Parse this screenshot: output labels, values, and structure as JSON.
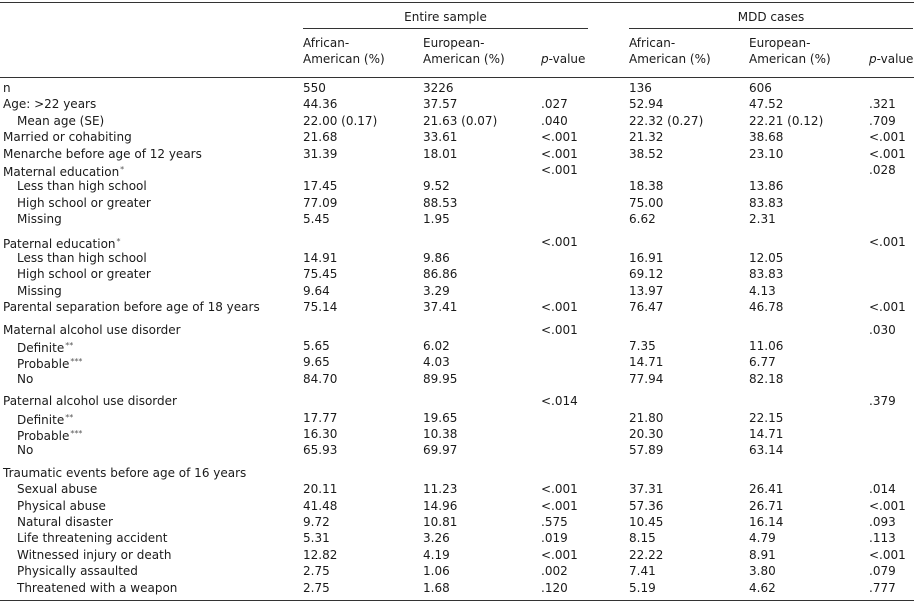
{
  "table": {
    "groups": [
      {
        "title": "Entire sample",
        "columns": [
          {
            "lines": [
              "African-",
              "American (%)"
            ]
          },
          {
            "lines": [
              "European-",
              "American (%)"
            ]
          },
          {
            "lines": [
              "p-value"
            ]
          }
        ]
      },
      {
        "title": "MDD cases",
        "columns": [
          {
            "lines": [
              "African-",
              "American (%)"
            ]
          },
          {
            "lines": [
              "European-",
              "American (%)"
            ]
          },
          {
            "lines": [
              "p-value"
            ]
          }
        ]
      }
    ],
    "sections": [
      [
        {
          "label": "n",
          "cells": [
            "550",
            "3226",
            null,
            "136",
            "606",
            null
          ]
        },
        {
          "label": "Age: >22 years",
          "cells": [
            "44.36",
            "37.57",
            ".027",
            "52.94",
            "47.52",
            ".321"
          ],
          "items": [
            {
              "label": "Mean age (SE)",
              "cells": [
                "22.00 (0.17)",
                "21.63 (0.07)",
                ".040",
                "22.32 (0.27)",
                "22.21 (0.12)",
                ".709"
              ]
            }
          ]
        },
        {
          "label": "Married or cohabiting",
          "cells": [
            "21.68",
            "33.61",
            "<.001",
            "21.32",
            "38.68",
            "<.001"
          ]
        },
        {
          "label": "Menarche before age of 12 years",
          "cells": [
            "31.39",
            "18.01",
            "<.001",
            "38.52",
            "23.10",
            "<.001"
          ]
        },
        {
          "label": "Maternal education",
          "note": "*",
          "cells": [
            null,
            null,
            "<.001",
            null,
            null,
            ".028"
          ],
          "items": [
            {
              "label": "Less than high school",
              "cells": [
                "17.45",
                "9.52",
                null,
                "18.38",
                "13.86",
                null
              ]
            },
            {
              "label": "High school or greater",
              "cells": [
                "77.09",
                "88.53",
                null,
                "75.00",
                "83.83",
                null
              ]
            },
            {
              "label": "Missing",
              "cells": [
                "5.45",
                "1.95",
                null,
                "6.62",
                "2.31",
                null
              ]
            }
          ]
        }
      ],
      [
        {
          "label": "Paternal education",
          "note": "*",
          "cells": [
            null,
            null,
            "<.001",
            null,
            null,
            "<.001"
          ],
          "items": [
            {
              "label": "Less than high school",
              "cells": [
                "14.91",
                "9.86",
                null,
                "16.91",
                "12.05",
                null
              ]
            },
            {
              "label": "High school or greater",
              "cells": [
                "75.45",
                "86.86",
                null,
                "69.12",
                "83.83",
                null
              ]
            },
            {
              "label": "Missing",
              "cells": [
                "9.64",
                "3.29",
                null,
                "13.97",
                "4.13",
                null
              ]
            }
          ]
        },
        {
          "label": "Parental separation before age of 18 years",
          "cells": [
            "75.14",
            "37.41",
            "<.001",
            "76.47",
            "46.78",
            "<.001"
          ]
        }
      ],
      [
        {
          "label": "Maternal alcohol use disorder",
          "cells": [
            null,
            null,
            "<.001",
            null,
            null,
            ".030"
          ],
          "items": [
            {
              "label": "Definite",
              "note": "**",
              "cells": [
                "5.65",
                "6.02",
                null,
                "7.35",
                "11.06",
                null
              ]
            },
            {
              "label": "Probable",
              "note": "***",
              "cells": [
                "9.65",
                "4.03",
                null,
                "14.71",
                "6.77",
                null
              ]
            },
            {
              "label": "No",
              "cells": [
                "84.70",
                "89.95",
                null,
                "77.94",
                "82.18",
                null
              ]
            }
          ]
        }
      ],
      [
        {
          "label": "Paternal alcohol use disorder",
          "cells": [
            null,
            null,
            "<.014",
            null,
            null,
            ".379"
          ],
          "items": [
            {
              "label": "Definite",
              "note": "**",
              "cells": [
                "17.77",
                "19.65",
                null,
                "21.80",
                "22.15",
                null
              ]
            },
            {
              "label": "Probable",
              "note": "***",
              "cells": [
                "16.30",
                "10.38",
                null,
                "20.30",
                "14.71",
                null
              ]
            },
            {
              "label": "No",
              "cells": [
                "65.93",
                "69.97",
                null,
                "57.89",
                "63.14",
                null
              ]
            }
          ]
        }
      ],
      [
        {
          "label": "Traumatic events before age of 16 years",
          "items": [
            {
              "label": "Sexual abuse",
              "cells": [
                "20.11",
                "11.23",
                "<.001",
                "37.31",
                "26.41",
                ".014"
              ]
            },
            {
              "label": "Physical abuse",
              "cells": [
                "41.48",
                "14.96",
                "<.001",
                "57.36",
                "26.71",
                "<.001"
              ]
            },
            {
              "label": "Natural disaster",
              "cells": [
                "9.72",
                "10.81",
                ".575",
                "10.45",
                "16.14",
                ".093"
              ]
            },
            {
              "label": "Life threatening accident",
              "cells": [
                "5.31",
                "3.26",
                ".019",
                "8.15",
                "4.79",
                ".113"
              ]
            },
            {
              "label": "Witnessed injury or death",
              "cells": [
                "12.82",
                "4.19",
                "<.001",
                "22.22",
                "8.91",
                "<.001"
              ]
            },
            {
              "label": "Physically assaulted",
              "cells": [
                "2.75",
                "1.06",
                ".002",
                "7.41",
                "3.80",
                ".079"
              ]
            },
            {
              "label": "Threatened with a weapon",
              "cells": [
                "2.75",
                "1.68",
                ".120",
                "5.19",
                "4.62",
                ".777"
              ]
            }
          ]
        }
      ]
    ]
  }
}
